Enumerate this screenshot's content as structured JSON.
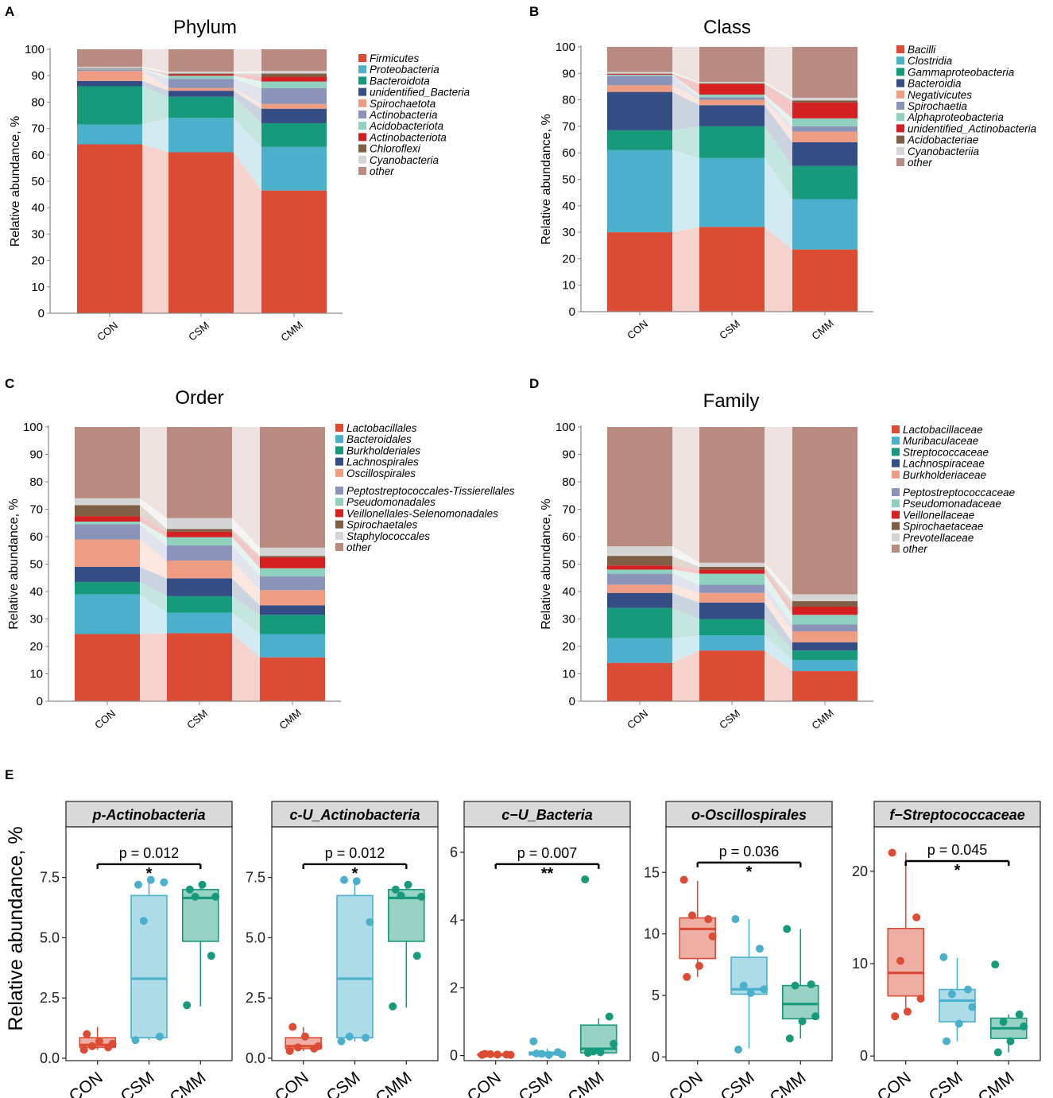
{
  "colors": {
    "Firmicutes": "#DC4B33",
    "Proteobacteria": "#4BB0CB",
    "Bacteroidota": "#179A7C",
    "unidentified_Bacteria": "#344D84",
    "Spirochaetota": "#EE9C82",
    "Actinobacteria": "#8A93B8",
    "Acidobacteriota": "#8FD1BE",
    "Actinobacteriota": "#D42020",
    "Chloroflexi": "#7E5E44",
    "Cyanobacteria": "#D4D4D4",
    "other": "#B88A80",
    "CON": "#DC4B33",
    "CSM": "#4BB0CB",
    "CMM": "#179A7C"
  },
  "y_axis_label": "Relative abundance, %",
  "boxplot_y_label": "Relative abundance, %",
  "chart_data": [
    {
      "id": "A",
      "type": "stacked-bar",
      "title": "Phylum",
      "ylabel": "Relative abundance, %",
      "ylim": [
        0,
        100
      ],
      "yticks": [
        0,
        10,
        20,
        30,
        40,
        50,
        60,
        70,
        80,
        90,
        100
      ],
      "categories": [
        "CON",
        "CSM",
        "CMM"
      ],
      "series": [
        {
          "name": "Firmicutes",
          "color": "#DC4B33",
          "values": [
            64.0,
            61.0,
            46.5
          ]
        },
        {
          "name": "Proteobacteria",
          "color": "#4BB0CB",
          "values": [
            7.5,
            13.0,
            16.5
          ]
        },
        {
          "name": "Bacteroidota",
          "color": "#179A7C",
          "values": [
            14.5,
            8.0,
            9.0
          ]
        },
        {
          "name": "unidentified_Bacteria",
          "color": "#344D84",
          "values": [
            2.0,
            2.3,
            5.5
          ]
        },
        {
          "name": "Spirochaetota",
          "color": "#EE9C82",
          "values": [
            3.8,
            1.0,
            1.8
          ]
        },
        {
          "name": "Actinobacteria",
          "color": "#8A93B8",
          "values": [
            0.6,
            3.5,
            6.0
          ]
        },
        {
          "name": "Acidobacteriota",
          "color": "#8FD1BE",
          "values": [
            0.3,
            1.2,
            2.5
          ]
        },
        {
          "name": "Actinobacteriota",
          "color": "#D42020",
          "values": [
            0.1,
            0.5,
            1.8
          ]
        },
        {
          "name": "Chloroflexi",
          "color": "#7E5E44",
          "values": [
            0.1,
            0.3,
            1.2
          ]
        },
        {
          "name": "Cyanobacteria",
          "color": "#D4D4D4",
          "values": [
            0.5,
            0.7,
            1.0
          ]
        },
        {
          "name": "other",
          "color": "#B88A80",
          "values": [
            6.6,
            8.5,
            8.2
          ]
        }
      ]
    },
    {
      "id": "B",
      "type": "stacked-bar",
      "title": "Class",
      "ylabel": "Relative abundance, %",
      "ylim": [
        0,
        100
      ],
      "yticks": [
        0,
        10,
        20,
        30,
        40,
        50,
        60,
        70,
        80,
        90,
        100
      ],
      "categories": [
        "CON",
        "CSM",
        "CMM"
      ],
      "series": [
        {
          "name": "Bacilli",
          "color": "#DC4B33",
          "values": [
            30.0,
            32.0,
            23.5
          ]
        },
        {
          "name": "Clostridia",
          "color": "#4BB0CB",
          "values": [
            31.0,
            26.0,
            19.0
          ]
        },
        {
          "name": "Gammaproteobacteria",
          "color": "#179A7C",
          "values": [
            7.5,
            12.0,
            12.5
          ]
        },
        {
          "name": "Bacteroidia",
          "color": "#344D84",
          "values": [
            14.5,
            8.0,
            9.0
          ]
        },
        {
          "name": "Negativicutes",
          "color": "#EE9C82",
          "values": [
            2.5,
            2.0,
            4.0
          ]
        },
        {
          "name": "Spirochaetia",
          "color": "#8A93B8",
          "values": [
            3.5,
            1.0,
            2.0
          ]
        },
        {
          "name": "Alphaproteobacteria",
          "color": "#8FD1BE",
          "values": [
            0.5,
            1.0,
            3.0
          ]
        },
        {
          "name": "unidentified_Actinobacteria",
          "color": "#D42020",
          "values": [
            0.3,
            4.0,
            6.0
          ]
        },
        {
          "name": "Acidobacteriae",
          "color": "#7E5E44",
          "values": [
            0.1,
            0.3,
            0.8
          ]
        },
        {
          "name": "Cyanobacteriia",
          "color": "#D4D4D4",
          "values": [
            0.6,
            0.5,
            1.0
          ]
        },
        {
          "name": "other",
          "color": "#B88A80",
          "values": [
            9.5,
            13.2,
            19.2
          ]
        }
      ]
    },
    {
      "id": "C",
      "type": "stacked-bar",
      "title": "Order",
      "ylabel": "Relative abundance, %",
      "ylim": [
        0,
        100
      ],
      "yticks": [
        0,
        10,
        20,
        30,
        40,
        50,
        60,
        70,
        80,
        90,
        100
      ],
      "categories": [
        "CON",
        "CSM",
        "CMM"
      ],
      "series": [
        {
          "name": "Lactobacillales",
          "color": "#DC4B33",
          "values": [
            24.5,
            24.8,
            16.0
          ]
        },
        {
          "name": "Bacteroidales",
          "color": "#4BB0CB",
          "values": [
            14.5,
            7.5,
            8.5
          ]
        },
        {
          "name": "Burkholderiales",
          "color": "#179A7C",
          "values": [
            4.5,
            6.0,
            7.0
          ]
        },
        {
          "name": "Lachnospirales",
          "color": "#344D84",
          "values": [
            5.5,
            6.5,
            3.5
          ]
        },
        {
          "name": "Oscillospirales",
          "color": "#EE9C82",
          "values": [
            10.0,
            6.5,
            5.5
          ]
        },
        {
          "name": "Peptostreptococcales-Tissierellales",
          "color": "#8A93B8",
          "values": [
            5.5,
            5.5,
            5.0
          ]
        },
        {
          "name": "Pseudomonadales",
          "color": "#8FD1BE",
          "values": [
            1.0,
            3.0,
            3.0
          ]
        },
        {
          "name": "Veillonellales-Selenomonadales",
          "color": "#D42020",
          "values": [
            2.0,
            2.0,
            4.0
          ]
        },
        {
          "name": "Spirochaetales",
          "color": "#7E5E44",
          "values": [
            4.0,
            1.0,
            0.5
          ]
        },
        {
          "name": "Staphylococcales",
          "color": "#D4D4D4",
          "values": [
            2.5,
            4.0,
            3.0
          ]
        },
        {
          "name": "other",
          "color": "#B88A80",
          "values": [
            26.0,
            33.2,
            44.0
          ]
        }
      ]
    },
    {
      "id": "D",
      "type": "stacked-bar",
      "title": "Family",
      "ylabel": "Relative abundance, %",
      "ylim": [
        0,
        100
      ],
      "yticks": [
        0,
        10,
        20,
        30,
        40,
        50,
        60,
        70,
        80,
        90,
        100
      ],
      "categories": [
        "CON",
        "CSM",
        "CMM"
      ],
      "series": [
        {
          "name": "Lactobacillaceae",
          "color": "#DC4B33",
          "values": [
            14.0,
            18.5,
            11.0
          ]
        },
        {
          "name": "Muribaculaceae",
          "color": "#4BB0CB",
          "values": [
            9.0,
            5.5,
            4.0
          ]
        },
        {
          "name": "Streptococcaceae",
          "color": "#179A7C",
          "values": [
            11.0,
            6.0,
            3.5
          ]
        },
        {
          "name": "Lachnospiraceae",
          "color": "#344D84",
          "values": [
            5.5,
            6.0,
            3.0
          ]
        },
        {
          "name": "Burkholderiaceae",
          "color": "#EE9C82",
          "values": [
            3.0,
            3.5,
            4.0
          ]
        },
        {
          "name": "Peptostreptococcaceae",
          "color": "#8A93B8",
          "values": [
            4.0,
            3.0,
            2.5
          ]
        },
        {
          "name": "Pseudomonadaceae",
          "color": "#8FD1BE",
          "values": [
            1.5,
            4.0,
            3.5
          ]
        },
        {
          "name": "Veillonellaceae",
          "color": "#D42020",
          "values": [
            1.5,
            1.5,
            3.0
          ]
        },
        {
          "name": "Spirochaetaceae",
          "color": "#7E5E44",
          "values": [
            3.5,
            1.0,
            2.0
          ]
        },
        {
          "name": "Prevotellaceae",
          "color": "#D4D4D4",
          "values": [
            3.5,
            1.5,
            2.5
          ]
        },
        {
          "name": "other",
          "color": "#B88A80",
          "values": [
            43.5,
            49.5,
            61.0
          ]
        }
      ]
    },
    {
      "id": "E1",
      "type": "boxplot",
      "title": "p-Actinobacteria",
      "ylabel": "Relative abundance, %",
      "ylim": [
        -0.1,
        9.6
      ],
      "yticks": [
        "0.0",
        "2.5",
        "5.0",
        "7.5"
      ],
      "ytick_values": [
        0,
        2.5,
        5,
        7.5
      ],
      "categories": [
        "CON",
        "CSM",
        "CMM"
      ],
      "boxes": [
        {
          "group": "CON",
          "min": 0.35,
          "q1": 0.45,
          "median": 0.55,
          "q3": 0.85,
          "max": 1.3,
          "points": [
            0.35,
            0.45,
            0.5,
            0.6,
            0.7,
            1.0
          ]
        },
        {
          "group": "CSM",
          "min": 0.75,
          "q1": 0.85,
          "median": 3.3,
          "q3": 6.75,
          "max": 7.4,
          "points": [
            0.75,
            0.9,
            5.7,
            7.3,
            7.4,
            7.2
          ]
        },
        {
          "group": "CMM",
          "min": 2.15,
          "q1": 4.85,
          "median": 6.65,
          "q3": 7.0,
          "max": 7.25,
          "points": [
            2.2,
            4.25,
            6.7,
            6.7,
            7.2,
            7.0
          ]
        }
      ],
      "annotation": {
        "p": "p = 0.012",
        "stars": "*",
        "level": 8.05
      }
    },
    {
      "id": "E2",
      "type": "boxplot",
      "title": "c-U_Actinobacteria",
      "ylabel": "Relative abundance, %",
      "ylim": [
        -0.1,
        9.6
      ],
      "yticks": [
        "0.0",
        "2.5",
        "5.0",
        "7.5"
      ],
      "ytick_values": [
        0,
        2.5,
        5,
        7.5
      ],
      "categories": [
        "CON",
        "CSM",
        "CMM"
      ],
      "boxes": [
        {
          "group": "CON",
          "min": 0.3,
          "q1": 0.4,
          "median": 0.5,
          "q3": 0.85,
          "max": 1.3,
          "points": [
            0.3,
            0.4,
            0.45,
            0.5,
            0.9,
            1.3
          ]
        },
        {
          "group": "CSM",
          "min": 0.7,
          "q1": 0.85,
          "median": 3.3,
          "q3": 6.75,
          "max": 7.4,
          "points": [
            0.7,
            0.85,
            0.9,
            5.65,
            7.35,
            7.4
          ]
        },
        {
          "group": "CMM",
          "min": 2.1,
          "q1": 4.85,
          "median": 6.65,
          "q3": 7.0,
          "max": 7.2,
          "points": [
            2.15,
            4.25,
            6.75,
            6.7,
            7.2,
            7.0
          ]
        }
      ],
      "annotation": {
        "p": "p = 0.012",
        "stars": "*",
        "level": 8.05
      }
    },
    {
      "id": "E3",
      "type": "boxplot",
      "title": "c−U_Bacteria",
      "ylabel": "Relative abundance, %",
      "ylim": [
        -0.15,
        6.75
      ],
      "yticks": [
        "0",
        "2",
        "4",
        "6"
      ],
      "ytick_values": [
        0,
        2,
        4,
        6
      ],
      "categories": [
        "CON",
        "CSM",
        "CMM"
      ],
      "boxes": [
        {
          "group": "CON",
          "min": 0.0,
          "q1": 0.0,
          "median": 0.02,
          "q3": 0.05,
          "max": 0.08,
          "points": [
            0.02,
            0.03,
            0.04,
            0.02,
            0.03,
            0.05
          ]
        },
        {
          "group": "CSM",
          "min": 0.0,
          "q1": 0.02,
          "median": 0.05,
          "q3": 0.1,
          "max": 0.2,
          "points": [
            0.42,
            0.1,
            0.05,
            0.03,
            0.02,
            0.06
          ]
        },
        {
          "group": "CMM",
          "min": 0.0,
          "q1": 0.08,
          "median": 0.2,
          "q3": 0.9,
          "max": 1.1,
          "points": [
            5.2,
            1.15,
            0.12,
            0.35,
            0.1,
            0.08
          ]
        }
      ],
      "annotation": {
        "p": "p = 0.007",
        "stars": "**",
        "level": 5.65
      }
    },
    {
      "id": "E4",
      "type": "boxplot",
      "title": "o-Oscillospirales",
      "ylabel": "Relative abundance, %",
      "ylim": [
        -0.3,
        18.7
      ],
      "yticks": [
        "0",
        "5",
        "10",
        "15"
      ],
      "ytick_values": [
        0,
        5,
        10,
        15
      ],
      "categories": [
        "CON",
        "CSM",
        "CMM"
      ],
      "boxes": [
        {
          "group": "CON",
          "min": 6.5,
          "q1": 8.0,
          "median": 10.4,
          "q3": 11.3,
          "max": 14.3,
          "points": [
            14.4,
            11.2,
            11.5,
            9.8,
            7.4,
            6.5
          ]
        },
        {
          "group": "CSM",
          "min": 0.7,
          "q1": 5.1,
          "median": 5.5,
          "q3": 8.1,
          "max": 11.2,
          "points": [
            11.2,
            8.8,
            5.8,
            5.5,
            5.2,
            0.6
          ]
        },
        {
          "group": "CMM",
          "min": 1.5,
          "q1": 3.1,
          "median": 4.3,
          "q3": 5.8,
          "max": 10.4,
          "points": [
            10.4,
            5.9,
            5.8,
            3.3,
            2.9,
            1.5
          ]
        }
      ],
      "annotation": {
        "p": "p = 0.036",
        "stars": "*",
        "level": 15.8
      }
    },
    {
      "id": "E5",
      "type": "boxplot",
      "title": "f−Streptococcaceae",
      "ylabel": "Relative abundance, %",
      "ylim": [
        -0.5,
        24.8
      ],
      "yticks": [
        "0",
        "10",
        "20"
      ],
      "ytick_values": [
        0,
        10,
        20
      ],
      "categories": [
        "CON",
        "CSM",
        "CMM"
      ],
      "boxes": [
        {
          "group": "CON",
          "min": 4.5,
          "q1": 6.5,
          "median": 9.0,
          "q3": 13.8,
          "max": 22.0,
          "points": [
            22.0,
            15.0,
            10.3,
            6.2,
            4.8,
            4.3
          ]
        },
        {
          "group": "CSM",
          "min": 1.6,
          "q1": 3.7,
          "median": 6.0,
          "q3": 7.2,
          "max": 10.6,
          "points": [
            10.7,
            7.2,
            6.7,
            5.3,
            3.5,
            1.6
          ]
        },
        {
          "group": "CMM",
          "min": 0.4,
          "q1": 1.9,
          "median": 3.0,
          "q3": 4.1,
          "max": 4.5,
          "points": [
            9.9,
            4.5,
            3.7,
            3.2,
            1.6,
            0.4
          ]
        }
      ],
      "annotation": {
        "p": "p = 0.045",
        "stars": "*",
        "level": 21.1
      }
    }
  ]
}
